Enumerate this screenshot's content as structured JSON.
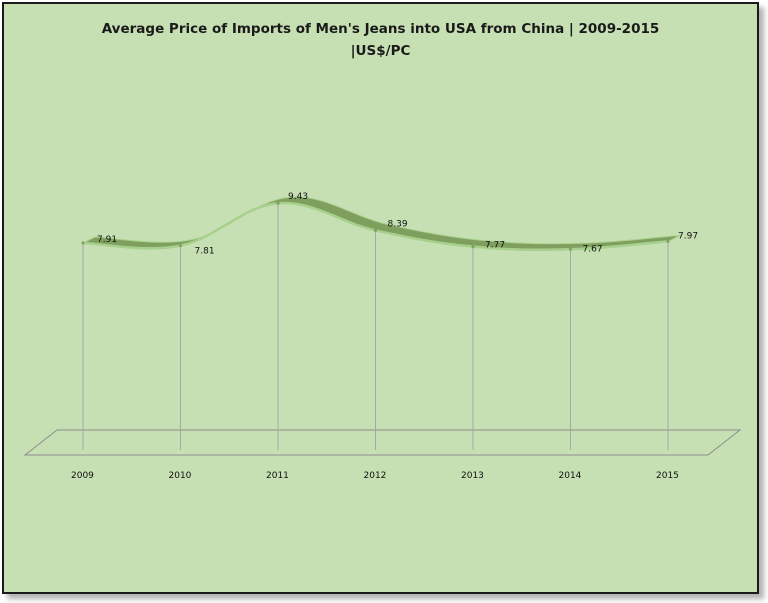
{
  "chart_data": {
    "type": "line",
    "title_line1": "Average Price of Imports of Men's Jeans into USA from China | 2009-2015",
    "title_line2": "|US$/PC",
    "categories": [
      "2009",
      "2010",
      "2011",
      "2012",
      "2013",
      "2014",
      "2015"
    ],
    "values": [
      7.91,
      7.81,
      9.43,
      8.39,
      7.77,
      7.67,
      7.97
    ],
    "data_labels": [
      "7.91",
      "7.81",
      "9.43",
      "8.39",
      "7.77",
      "7.67",
      "7.97"
    ],
    "ylim": [
      0,
      12
    ],
    "grid": false,
    "legend": "none",
    "style": "3d-ribbon"
  },
  "colors": {
    "background": "#c6e0b4",
    "ribbon_top": "#7f9f5f",
    "ribbon_edge": "#a8d08d",
    "drop_lines": "#a6a6a6",
    "floor_line": "#8c8c8c"
  }
}
